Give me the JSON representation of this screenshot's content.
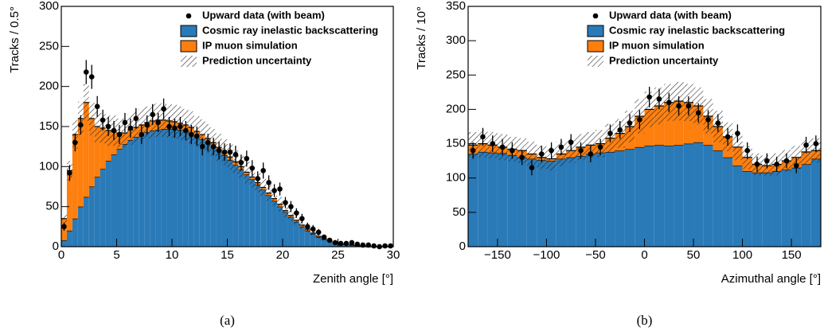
{
  "chart_data": [
    {
      "type": "histogram",
      "caption": "(a)",
      "xlabel": "Zenith angle [°]",
      "ylabel": "Tracks / 0.5°",
      "bins": [
        0,
        0.5,
        1,
        1.5,
        2,
        2.5,
        3,
        3.5,
        4,
        4.5,
        5,
        5.5,
        6,
        6.5,
        7,
        7.5,
        8,
        8.5,
        9,
        9.5,
        10,
        10.5,
        11,
        11.5,
        12,
        12.5,
        13,
        13.5,
        14,
        14.5,
        15,
        15.5,
        16,
        16.5,
        17,
        17.5,
        18,
        18.5,
        19,
        19.5,
        20,
        20.5,
        21,
        21.5,
        22,
        22.5,
        23,
        23.5,
        24,
        24.5,
        25,
        25.5,
        26,
        26.5,
        27,
        27.5,
        28,
        28.5,
        29,
        29.5,
        30
      ],
      "series": [
        {
          "name": "Cosmic ray inelastic backscattering",
          "color": "#2a7ab8",
          "values": [
            8,
            20,
            35,
            50,
            62,
            75,
            87,
            97,
            107,
            115,
            122,
            128,
            133,
            137,
            140,
            143,
            145,
            146,
            147,
            147,
            147,
            146,
            144,
            142,
            138,
            134,
            130,
            125,
            120,
            114,
            108,
            102,
            96,
            90,
            84,
            77,
            71,
            64,
            57,
            50,
            43,
            37,
            31,
            25,
            20,
            16,
            12,
            9,
            7,
            5,
            3,
            3,
            2,
            1,
            1,
            0,
            0,
            0,
            0,
            0
          ]
        },
        {
          "name": "IP muon simulation",
          "color": "#fd7f0e",
          "values": [
            27,
            75,
            105,
            110,
            118,
            85,
            63,
            51,
            38,
            30,
            20,
            14,
            13,
            12,
            12,
            12,
            12,
            12,
            11,
            10,
            9,
            8,
            8,
            7,
            6,
            6,
            5,
            5,
            4,
            4,
            4,
            4,
            4,
            3,
            3,
            3,
            3,
            3,
            3,
            3,
            2,
            2,
            2,
            2,
            2,
            1,
            1,
            1,
            1,
            0,
            0,
            0,
            0,
            0,
            0,
            0,
            0,
            0,
            0,
            0
          ]
        }
      ],
      "data": {
        "name": "Upward data (with beam)",
        "values": [
          25,
          92,
          130,
          152,
          218,
          212,
          175,
          158,
          150,
          145,
          140,
          155,
          148,
          160,
          140,
          152,
          165,
          155,
          172,
          150,
          148,
          150,
          145,
          140,
          138,
          125,
          130,
          125,
          120,
          118,
          118,
          115,
          105,
          110,
          98,
          85,
          95,
          80,
          70,
          72,
          55,
          50,
          42,
          35,
          25,
          22,
          18,
          12,
          8,
          5,
          4,
          4,
          5,
          3,
          2,
          2,
          1,
          0,
          1,
          1
        ],
        "errors": [
          5,
          10,
          11,
          12,
          15,
          15,
          13,
          13,
          12,
          12,
          12,
          12,
          12,
          13,
          12,
          12,
          13,
          12,
          13,
          12,
          12,
          12,
          12,
          12,
          12,
          11,
          11,
          11,
          11,
          11,
          11,
          11,
          10,
          10,
          10,
          9,
          10,
          9,
          8,
          8,
          7,
          7,
          6,
          6,
          5,
          5,
          4,
          3,
          3,
          2,
          2,
          2,
          2,
          2,
          1,
          1,
          1,
          0,
          1,
          1
        ]
      },
      "uncertainty": {
        "name": "Prediction uncertainty",
        "values": [
          5,
          12,
          18,
          21,
          23,
          21,
          20,
          19,
          19,
          19,
          18,
          18,
          19,
          19,
          20,
          20,
          21,
          21,
          21,
          21,
          21,
          21,
          20,
          20,
          19,
          19,
          18,
          17,
          17,
          16,
          16,
          15,
          14,
          14,
          13,
          12,
          11,
          10,
          9,
          9,
          8,
          7,
          6,
          5,
          4,
          3,
          3,
          2,
          1,
          1,
          1,
          1,
          1,
          1,
          0,
          0,
          0,
          0,
          0,
          0
        ]
      },
      "xlim": [
        0,
        30
      ],
      "xticks": [
        0,
        5,
        10,
        15,
        20,
        25,
        30
      ],
      "ylim": [
        0,
        300
      ],
      "yticks": [
        0,
        50,
        100,
        150,
        200,
        250,
        300
      ]
    },
    {
      "type": "histogram",
      "caption": "(b)",
      "xlabel": "Azimuthal angle [°]",
      "ylabel": "Tracks / 10°",
      "bins": [
        -180,
        -170,
        -160,
        -150,
        -140,
        -130,
        -120,
        -110,
        -100,
        -90,
        -80,
        -70,
        -60,
        -50,
        -40,
        -30,
        -20,
        -10,
        0,
        10,
        20,
        30,
        40,
        50,
        60,
        70,
        80,
        90,
        100,
        110,
        120,
        130,
        140,
        150,
        160,
        170,
        180
      ],
      "series": [
        {
          "name": "Cosmic ray inelastic backscattering",
          "color": "#2a7ab8",
          "values": [
            135,
            138,
            137,
            136,
            133,
            130,
            128,
            126,
            125,
            128,
            130,
            132,
            135,
            137,
            138,
            140,
            142,
            145,
            147,
            148,
            147,
            148,
            150,
            152,
            148,
            140,
            130,
            118,
            110,
            108,
            108,
            110,
            112,
            115,
            120,
            128
          ]
        },
        {
          "name": "IP muon simulation",
          "color": "#fd7f0e",
          "values": [
            13,
            12,
            11,
            9,
            9,
            10,
            7,
            4,
            3,
            7,
            10,
            13,
            13,
            13,
            20,
            25,
            33,
            45,
            53,
            57,
            63,
            64,
            60,
            53,
            42,
            35,
            30,
            27,
            20,
            12,
            10,
            10,
            13,
            15,
            18,
            12
          ]
        }
      ],
      "data": {
        "name": "Upward data (with beam)",
        "values": [
          140,
          160,
          150,
          145,
          140,
          130,
          115,
          135,
          140,
          145,
          152,
          140,
          135,
          145,
          165,
          170,
          180,
          185,
          218,
          215,
          210,
          205,
          205,
          195,
          185,
          180,
          160,
          165,
          140,
          120,
          125,
          120,
          125,
          118,
          148,
          150
        ],
        "errors": [
          12,
          13,
          12,
          12,
          12,
          11,
          11,
          12,
          12,
          12,
          12,
          12,
          12,
          12,
          13,
          13,
          13,
          14,
          15,
          15,
          14,
          14,
          14,
          14,
          14,
          13,
          13,
          13,
          12,
          11,
          11,
          11,
          11,
          11,
          12,
          12
        ]
      },
      "uncertainty": {
        "name": "Prediction uncertainty",
        "values": [
          19,
          20,
          19,
          19,
          18,
          18,
          18,
          17,
          17,
          18,
          18,
          19,
          19,
          20,
          21,
          21,
          23,
          25,
          26,
          27,
          27,
          28,
          27,
          27,
          25,
          23,
          21,
          19,
          17,
          16,
          15,
          16,
          16,
          17,
          18,
          18
        ]
      },
      "xlim": [
        -180,
        180
      ],
      "xticks": [
        {
          "value": -150,
          "label": "−150"
        },
        {
          "value": -100,
          "label": "−100"
        },
        {
          "value": -50,
          "label": "−50"
        },
        0,
        50,
        100,
        150
      ],
      "ylim": [
        0,
        350
      ],
      "yticks": [
        0,
        50,
        100,
        150,
        200,
        250,
        300,
        350
      ]
    }
  ]
}
